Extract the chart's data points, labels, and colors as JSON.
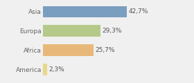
{
  "categories": [
    "America",
    "Africa",
    "Europa",
    "Asia"
  ],
  "values": [
    2.3,
    25.7,
    29.3,
    42.7
  ],
  "labels": [
    "2,3%",
    "25,7%",
    "29,3%",
    "42,7%"
  ],
  "bar_colors": [
    "#e8d88a",
    "#e8b87a",
    "#b5c98a",
    "#7a9ec0"
  ],
  "background_color": "#f0f0f0",
  "xlim": [
    0,
    65
  ],
  "label_fontsize": 6.5,
  "tick_fontsize": 6.5,
  "bar_height": 0.6
}
